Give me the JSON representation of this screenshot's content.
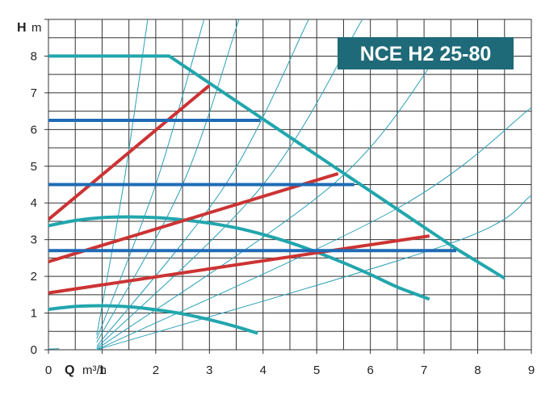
{
  "chart_data": {
    "type": "line",
    "title": "NCE H2 25-80",
    "y_axis": {
      "letter": "H",
      "unit": "m",
      "range": [
        0,
        9
      ],
      "ticks": [
        "0",
        "1",
        "2",
        "3",
        "4",
        "5",
        "6",
        "7",
        "8"
      ]
    },
    "x_axis": {
      "letter": "Q",
      "unit": "m³/h",
      "range": [
        0,
        9
      ],
      "ticks": [
        "0",
        "1",
        "2",
        "3",
        "4",
        "5",
        "6",
        "7",
        "8",
        "9"
      ]
    },
    "grid": true,
    "colors": {
      "teal": "#22a6ad",
      "red": "#cc3333",
      "blue": "#1f6bb5",
      "system": "#2aa0b8",
      "grid": "#333333",
      "title_bg": "#1f6a78"
    },
    "series": [
      {
        "kind": "max_curve",
        "color": "teal",
        "points": [
          [
            0,
            8
          ],
          [
            2.25,
            8
          ],
          [
            7.6,
            2.75
          ],
          [
            8.5,
            1.95
          ]
        ]
      },
      {
        "kind": "proportional_pressure",
        "color": "red",
        "points": [
          [
            0,
            3.55
          ],
          [
            3.0,
            7.2
          ]
        ]
      },
      {
        "kind": "proportional_pressure",
        "color": "red",
        "points": [
          [
            0,
            2.4
          ],
          [
            5.4,
            4.8
          ]
        ]
      },
      {
        "kind": "proportional_pressure",
        "color": "red",
        "points": [
          [
            0,
            1.55
          ],
          [
            7.1,
            3.1
          ]
        ]
      },
      {
        "kind": "constant_pressure",
        "color": "blue",
        "points": [
          [
            0,
            6.25
          ],
          [
            3.95,
            6.25
          ]
        ]
      },
      {
        "kind": "constant_pressure",
        "color": "blue",
        "points": [
          [
            0,
            4.5
          ],
          [
            5.7,
            4.5
          ]
        ]
      },
      {
        "kind": "constant_pressure",
        "color": "blue",
        "points": [
          [
            0,
            2.7
          ],
          [
            7.6,
            2.7
          ]
        ]
      },
      {
        "kind": "fixed_speed",
        "color": "teal",
        "points": [
          [
            0,
            3.38
          ],
          [
            0.5,
            3.52
          ],
          [
            1.0,
            3.6
          ],
          [
            1.5,
            3.62
          ],
          [
            2.0,
            3.6
          ],
          [
            2.5,
            3.54
          ],
          [
            3.0,
            3.45
          ],
          [
            3.5,
            3.32
          ],
          [
            4.0,
            3.14
          ],
          [
            4.5,
            2.92
          ],
          [
            5.0,
            2.66
          ],
          [
            5.5,
            2.37
          ],
          [
            6.0,
            2.05
          ],
          [
            6.5,
            1.71
          ],
          [
            7.1,
            1.38
          ]
        ]
      },
      {
        "kind": "fixed_speed",
        "color": "teal",
        "points": [
          [
            0,
            1.1
          ],
          [
            0.5,
            1.18
          ],
          [
            1.0,
            1.2
          ],
          [
            1.5,
            1.17
          ],
          [
            2.0,
            1.09
          ],
          [
            2.5,
            0.98
          ],
          [
            3.0,
            0.82
          ],
          [
            3.5,
            0.63
          ],
          [
            3.9,
            0.45
          ]
        ]
      },
      {
        "kind": "system_curve",
        "color": "system",
        "points": [
          [
            0.9,
            0.4
          ],
          [
            1.4,
            4.5
          ],
          [
            1.85,
            9.0
          ]
        ]
      },
      {
        "kind": "system_curve",
        "color": "system",
        "points": [
          [
            0.9,
            0.3
          ],
          [
            2.0,
            4.5
          ],
          [
            2.9,
            9.0
          ]
        ]
      },
      {
        "kind": "system_curve",
        "color": "system",
        "points": [
          [
            0.9,
            0.2
          ],
          [
            2.5,
            4.5
          ],
          [
            3.55,
            9.0
          ]
        ]
      },
      {
        "kind": "system_curve",
        "color": "system",
        "points": [
          [
            0.9,
            0.1
          ],
          [
            3.3,
            4.5
          ],
          [
            4.85,
            9.0
          ]
        ]
      },
      {
        "kind": "system_curve",
        "color": "system",
        "points": [
          [
            0.9,
            0.05
          ],
          [
            4.0,
            4.5
          ],
          [
            5.85,
            9.0
          ]
        ]
      },
      {
        "kind": "system_curve",
        "color": "system",
        "points": [
          [
            0.9,
            0.02
          ],
          [
            5.3,
            4.5
          ],
          [
            7.25,
            8.0
          ]
        ]
      },
      {
        "kind": "system_curve",
        "color": "system",
        "points": [
          [
            0.9,
            0.0
          ],
          [
            6.5,
            3.85
          ],
          [
            9.0,
            6.6
          ]
        ]
      },
      {
        "kind": "system_curve",
        "color": "system",
        "points": [
          [
            0.9,
            0.0
          ],
          [
            7.5,
            2.9
          ],
          [
            9.0,
            4.2
          ]
        ]
      },
      {
        "kind": "system_curve",
        "color": "system",
        "points": [
          [
            0,
            0.02
          ],
          [
            0.2,
            0.03
          ]
        ]
      }
    ]
  }
}
